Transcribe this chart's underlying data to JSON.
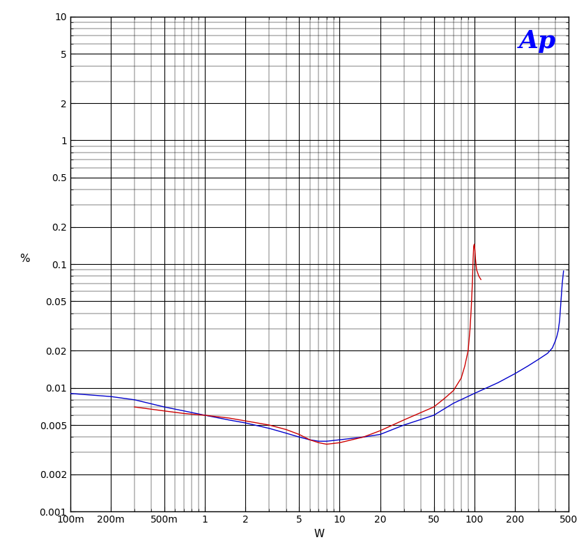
{
  "xlabel": "W",
  "ylabel": "%",
  "xmin": 0.1,
  "xmax": 500,
  "ymin": 0.001,
  "ymax": 10,
  "background_color": "#ffffff",
  "grid_major_color": "#000000",
  "grid_minor_color": "#000000",
  "line1_color": "#0000cc",
  "line2_color": "#cc0000",
  "ap_logo_color": "#0000ff",
  "x_major_ticks": [
    0.1,
    0.2,
    0.5,
    1,
    2,
    5,
    10,
    20,
    50,
    100,
    200,
    500
  ],
  "x_labels": [
    "100m",
    "200m",
    "500m",
    "1",
    "2",
    "5",
    "10",
    "20",
    "50",
    "100",
    "200",
    "500"
  ],
  "y_major_ticks": [
    0.001,
    0.002,
    0.005,
    0.01,
    0.02,
    0.05,
    0.1,
    0.2,
    0.5,
    1,
    2,
    5,
    10
  ],
  "y_labels": [
    "0.001",
    "0.002",
    "0.005",
    "0.01",
    "0.02",
    "0.05",
    "0.1",
    "0.2",
    "0.5",
    "1",
    "2",
    "5",
    "10"
  ],
  "blue_x": [
    0.1,
    0.2,
    0.3,
    0.5,
    0.7,
    1.0,
    1.5,
    2.0,
    3.0,
    4.0,
    5.0,
    6.0,
    7.0,
    8.0,
    10.0,
    15.0,
    20.0,
    30.0,
    50.0,
    70.0,
    100.0,
    150.0,
    200.0,
    250.0,
    300.0,
    350.0,
    380.0,
    400.0,
    410.0,
    420.0,
    430.0,
    440.0,
    450.0,
    460.0
  ],
  "blue_y": [
    0.009,
    0.0085,
    0.008,
    0.007,
    0.0065,
    0.006,
    0.0055,
    0.0052,
    0.0047,
    0.0043,
    0.004,
    0.0038,
    0.0037,
    0.0037,
    0.0038,
    0.004,
    0.0042,
    0.005,
    0.006,
    0.0075,
    0.009,
    0.011,
    0.013,
    0.015,
    0.017,
    0.019,
    0.021,
    0.024,
    0.026,
    0.029,
    0.035,
    0.05,
    0.07,
    0.088
  ],
  "red_x": [
    0.3,
    0.5,
    0.7,
    1.0,
    1.5,
    2.0,
    3.0,
    4.0,
    5.0,
    6.0,
    7.0,
    8.0,
    10.0,
    15.0,
    20.0,
    30.0,
    50.0,
    60.0,
    70.0,
    80.0,
    85.0,
    90.0,
    93.0,
    95.0,
    97.0,
    98.0,
    99.0,
    100.0,
    101.0,
    102.0,
    104.0,
    108.0,
    112.0
  ],
  "red_y": [
    0.007,
    0.0065,
    0.0062,
    0.006,
    0.0057,
    0.0054,
    0.005,
    0.0046,
    0.0042,
    0.0038,
    0.0036,
    0.0035,
    0.0036,
    0.004,
    0.0045,
    0.0055,
    0.007,
    0.0082,
    0.0095,
    0.012,
    0.015,
    0.02,
    0.03,
    0.045,
    0.075,
    0.11,
    0.14,
    0.145,
    0.13,
    0.11,
    0.09,
    0.08,
    0.075
  ]
}
